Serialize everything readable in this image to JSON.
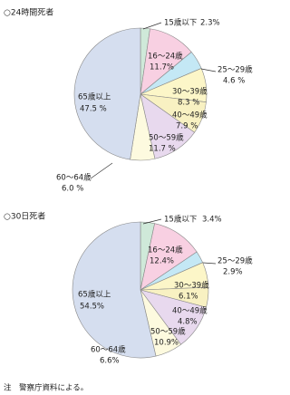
{
  "chart_data": [
    {
      "type": "pie",
      "title": "○24時間死者",
      "categories": [
        "15歳以下",
        "16〜24歳",
        "25〜29歳",
        "30〜39歳",
        "40〜49歳",
        "50〜59歳",
        "60〜64歳",
        "65歳以上"
      ],
      "values": [
        2.3,
        11.7,
        4.6,
        8.3,
        7.9,
        11.7,
        6.0,
        47.5
      ],
      "value_labels": [
        "2.3%",
        "11.7%",
        "4.6 %",
        "8.3 %",
        "7.9 %",
        "11.7 %",
        "6.0 %",
        "47.5 %"
      ],
      "colors": [
        "#cfe9d9",
        "#f8d0e2",
        "#c4e8f5",
        "#fcf6c8",
        "#f8f1c2",
        "#e8d9ee",
        "#fdfadf",
        "#d5deef"
      ]
    },
    {
      "type": "pie",
      "title": "○30日死者",
      "categories": [
        "15歳以下",
        "16〜24歳",
        "25〜29歳",
        "30〜39歳",
        "40〜49歳",
        "50〜59歳",
        "60〜64歳",
        "65歳以上"
      ],
      "values": [
        3.4,
        12.4,
        2.9,
        6.1,
        4.8,
        10.9,
        6.6,
        54.5
      ],
      "value_labels": [
        "3.4%",
        "12.4%",
        "2.9%",
        "6.1%",
        "4.8%",
        "10.9%",
        "6.6%",
        "54.5%"
      ],
      "colors": [
        "#cfe9d9",
        "#f8d0e2",
        "#c4e8f5",
        "#fcf6c8",
        "#f8f1c2",
        "#e8d9ee",
        "#fdfadf",
        "#d5deef"
      ]
    }
  ],
  "note": "注　警察庁資料による。"
}
